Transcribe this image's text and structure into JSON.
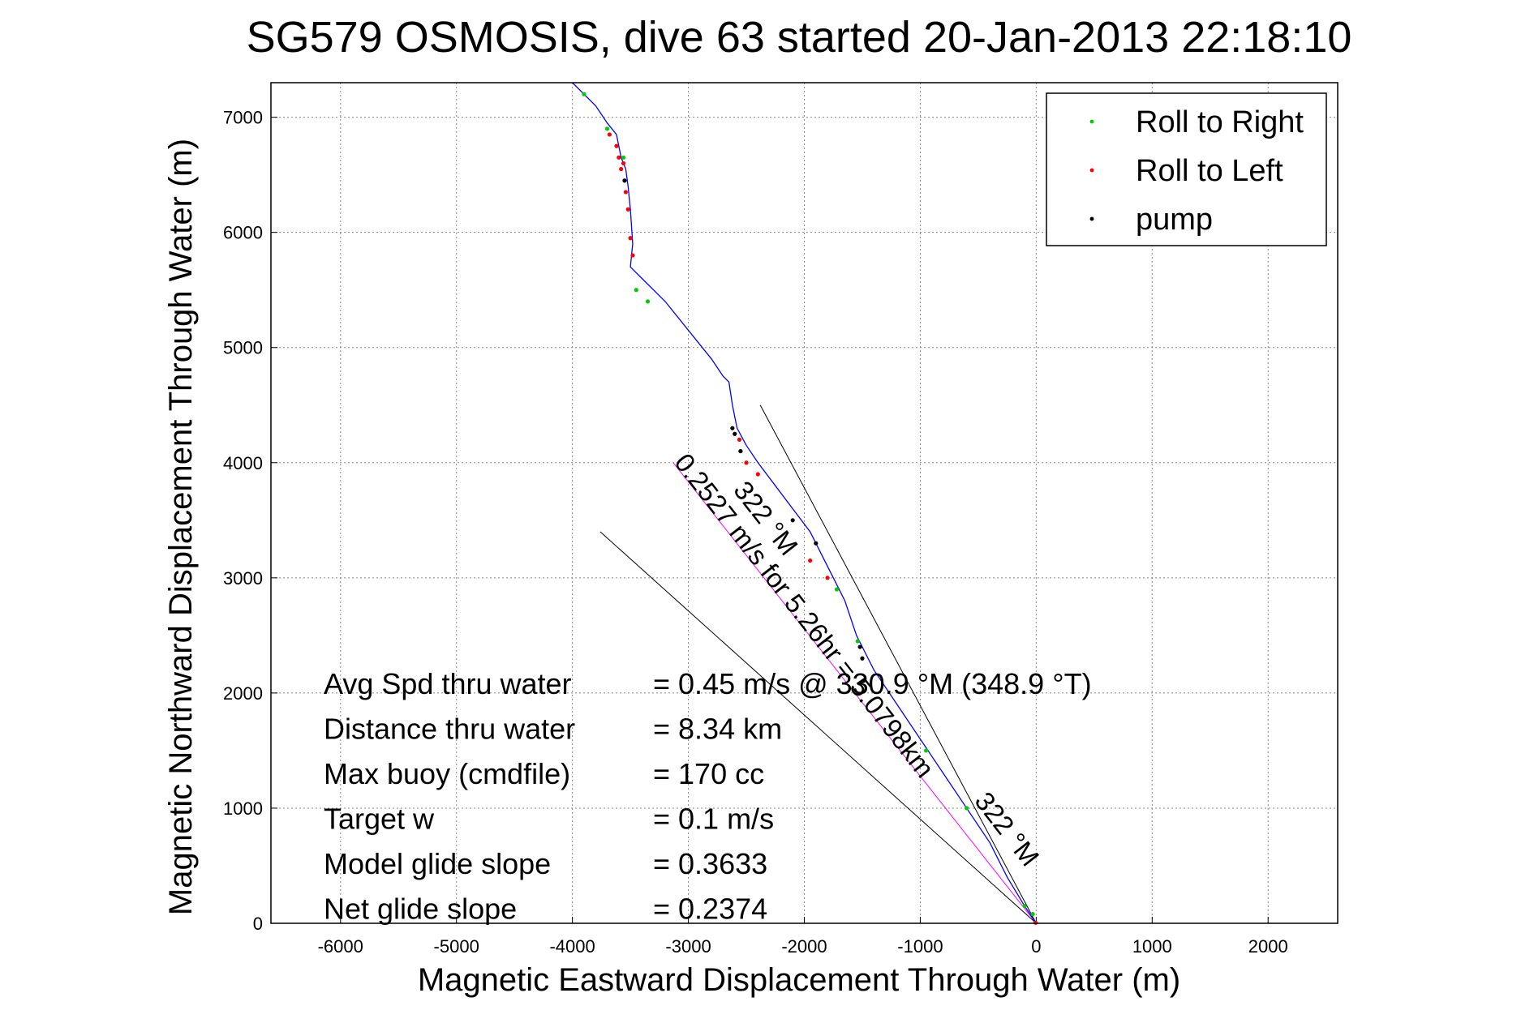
{
  "chart_data": {
    "type": "line",
    "title": "SG579 OSMOSIS, dive 63 started 20-Jan-2013 22:18:10",
    "xlabel": "Magnetic Eastward Displacement Through Water (m)",
    "ylabel": "Magnetic Northward Displacement Through Water (m)",
    "xlim": [
      -6600,
      2600
    ],
    "ylim": [
      0,
      7300
    ],
    "xticks": [
      "-6000",
      "-5000",
      "-4000",
      "-3000",
      "-2000",
      "-1000",
      "0",
      "1000",
      "2000"
    ],
    "xtick_values": [
      -6000,
      -5000,
      -4000,
      -3000,
      -2000,
      -1000,
      0,
      1000,
      2000
    ],
    "yticks": [
      "0",
      "1000",
      "2000",
      "3000",
      "4000",
      "5000",
      "6000",
      "7000"
    ],
    "ytick_values": [
      0,
      1000,
      2000,
      3000,
      4000,
      5000,
      6000,
      7000
    ],
    "grid": true,
    "legend_position": "top-right",
    "legend": [
      {
        "label": "Roll to Right",
        "color": "#00cc00"
      },
      {
        "label": "Roll to Left",
        "color": "#ff0000"
      },
      {
        "label": "pump",
        "color": "#000000"
      }
    ],
    "track": {
      "color": "#0000ff",
      "x": [
        0,
        -100,
        -250,
        -400,
        -600,
        -800,
        -1000,
        -1200,
        -1400,
        -1550,
        -1650,
        -1750,
        -1850,
        -1950,
        -2100,
        -2250,
        -2400,
        -2500,
        -2580,
        -2620,
        -2650,
        -2700,
        -2800,
        -3000,
        -3200,
        -3400,
        -3500,
        -3480,
        -3500,
        -3520,
        -3540,
        -3580,
        -3600,
        -3620,
        -3700,
        -3800,
        -3900,
        -4000
      ],
      "y": [
        0,
        150,
        400,
        700,
        1000,
        1300,
        1600,
        1900,
        2200,
        2500,
        2800,
        3000,
        3200,
        3400,
        3600,
        3800,
        4000,
        4150,
        4300,
        4500,
        4700,
        4750,
        4900,
        5150,
        5400,
        5600,
        5700,
        5900,
        6200,
        6400,
        6550,
        6650,
        6750,
        6850,
        6950,
        7100,
        7200,
        7300
      ]
    },
    "roll_right_points": {
      "color": "#00cc00",
      "x": [
        -30,
        -100,
        -600,
        -950,
        -1540,
        -1720,
        -2550,
        -3350,
        -3450,
        -3700,
        -3900,
        -3560
      ],
      "y": [
        80,
        150,
        1000,
        1500,
        2450,
        2900,
        4100,
        5400,
        5500,
        6900,
        7200,
        6650
      ]
    },
    "roll_left_points": {
      "color": "#ff0000",
      "x": [
        -5,
        -1800,
        -1950,
        -2400,
        -2500,
        -2560,
        -3480,
        -3500,
        -3520,
        -3540,
        -3580,
        -3600,
        -3620,
        -3680,
        -3560
      ],
      "y": [
        5,
        3000,
        3150,
        3900,
        4000,
        4200,
        5800,
        5950,
        6200,
        6350,
        6550,
        6650,
        6750,
        6850,
        6600
      ]
    },
    "pump_points": {
      "color": "#000000",
      "x": [
        -1500,
        -1520,
        -1900,
        -2100,
        -2550,
        -2600,
        -2620,
        -3550
      ],
      "y": [
        2300,
        2400,
        3300,
        3500,
        4100,
        4250,
        4300,
        6450
      ]
    },
    "reference_lines": [
      {
        "x": [
          0,
          -3760
        ],
        "y": [
          0,
          3400
        ],
        "color": "#000000"
      },
      {
        "x": [
          0,
          -2380
        ],
        "y": [
          0,
          4500
        ],
        "color": "#000000"
      },
      {
        "x": [
          0,
          -3130
        ],
        "y": [
          0,
          4000
        ],
        "color": "#ff00ff"
      }
    ],
    "annotations": [
      {
        "text": "0.2527 m/s for 5.26hr = 5.0798km",
        "angle": 52,
        "anchor_x": -3130,
        "anchor_y": 4000
      },
      {
        "text": "322 °M",
        "angle": 52,
        "anchor_x": -2620,
        "anchor_y": 3760
      },
      {
        "text": "322 °M",
        "angle": 52,
        "anchor_x": -540,
        "anchor_y": 1060
      }
    ],
    "stats": [
      {
        "label": "Avg Spd thru water",
        "value": "=  0.45 m/s @ 330.9 °M (348.9 °T)"
      },
      {
        "label": "Distance thru water",
        "value": "=  8.34 km"
      },
      {
        "label": "Max buoy (cmdfile)",
        "value": "= 170 cc"
      },
      {
        "label": "Target w",
        "value": "= 0.1 m/s"
      },
      {
        "label": "Model glide slope",
        "value": "= 0.3633"
      },
      {
        "label": "Net glide slope",
        "value": "= 0.2374"
      }
    ]
  }
}
